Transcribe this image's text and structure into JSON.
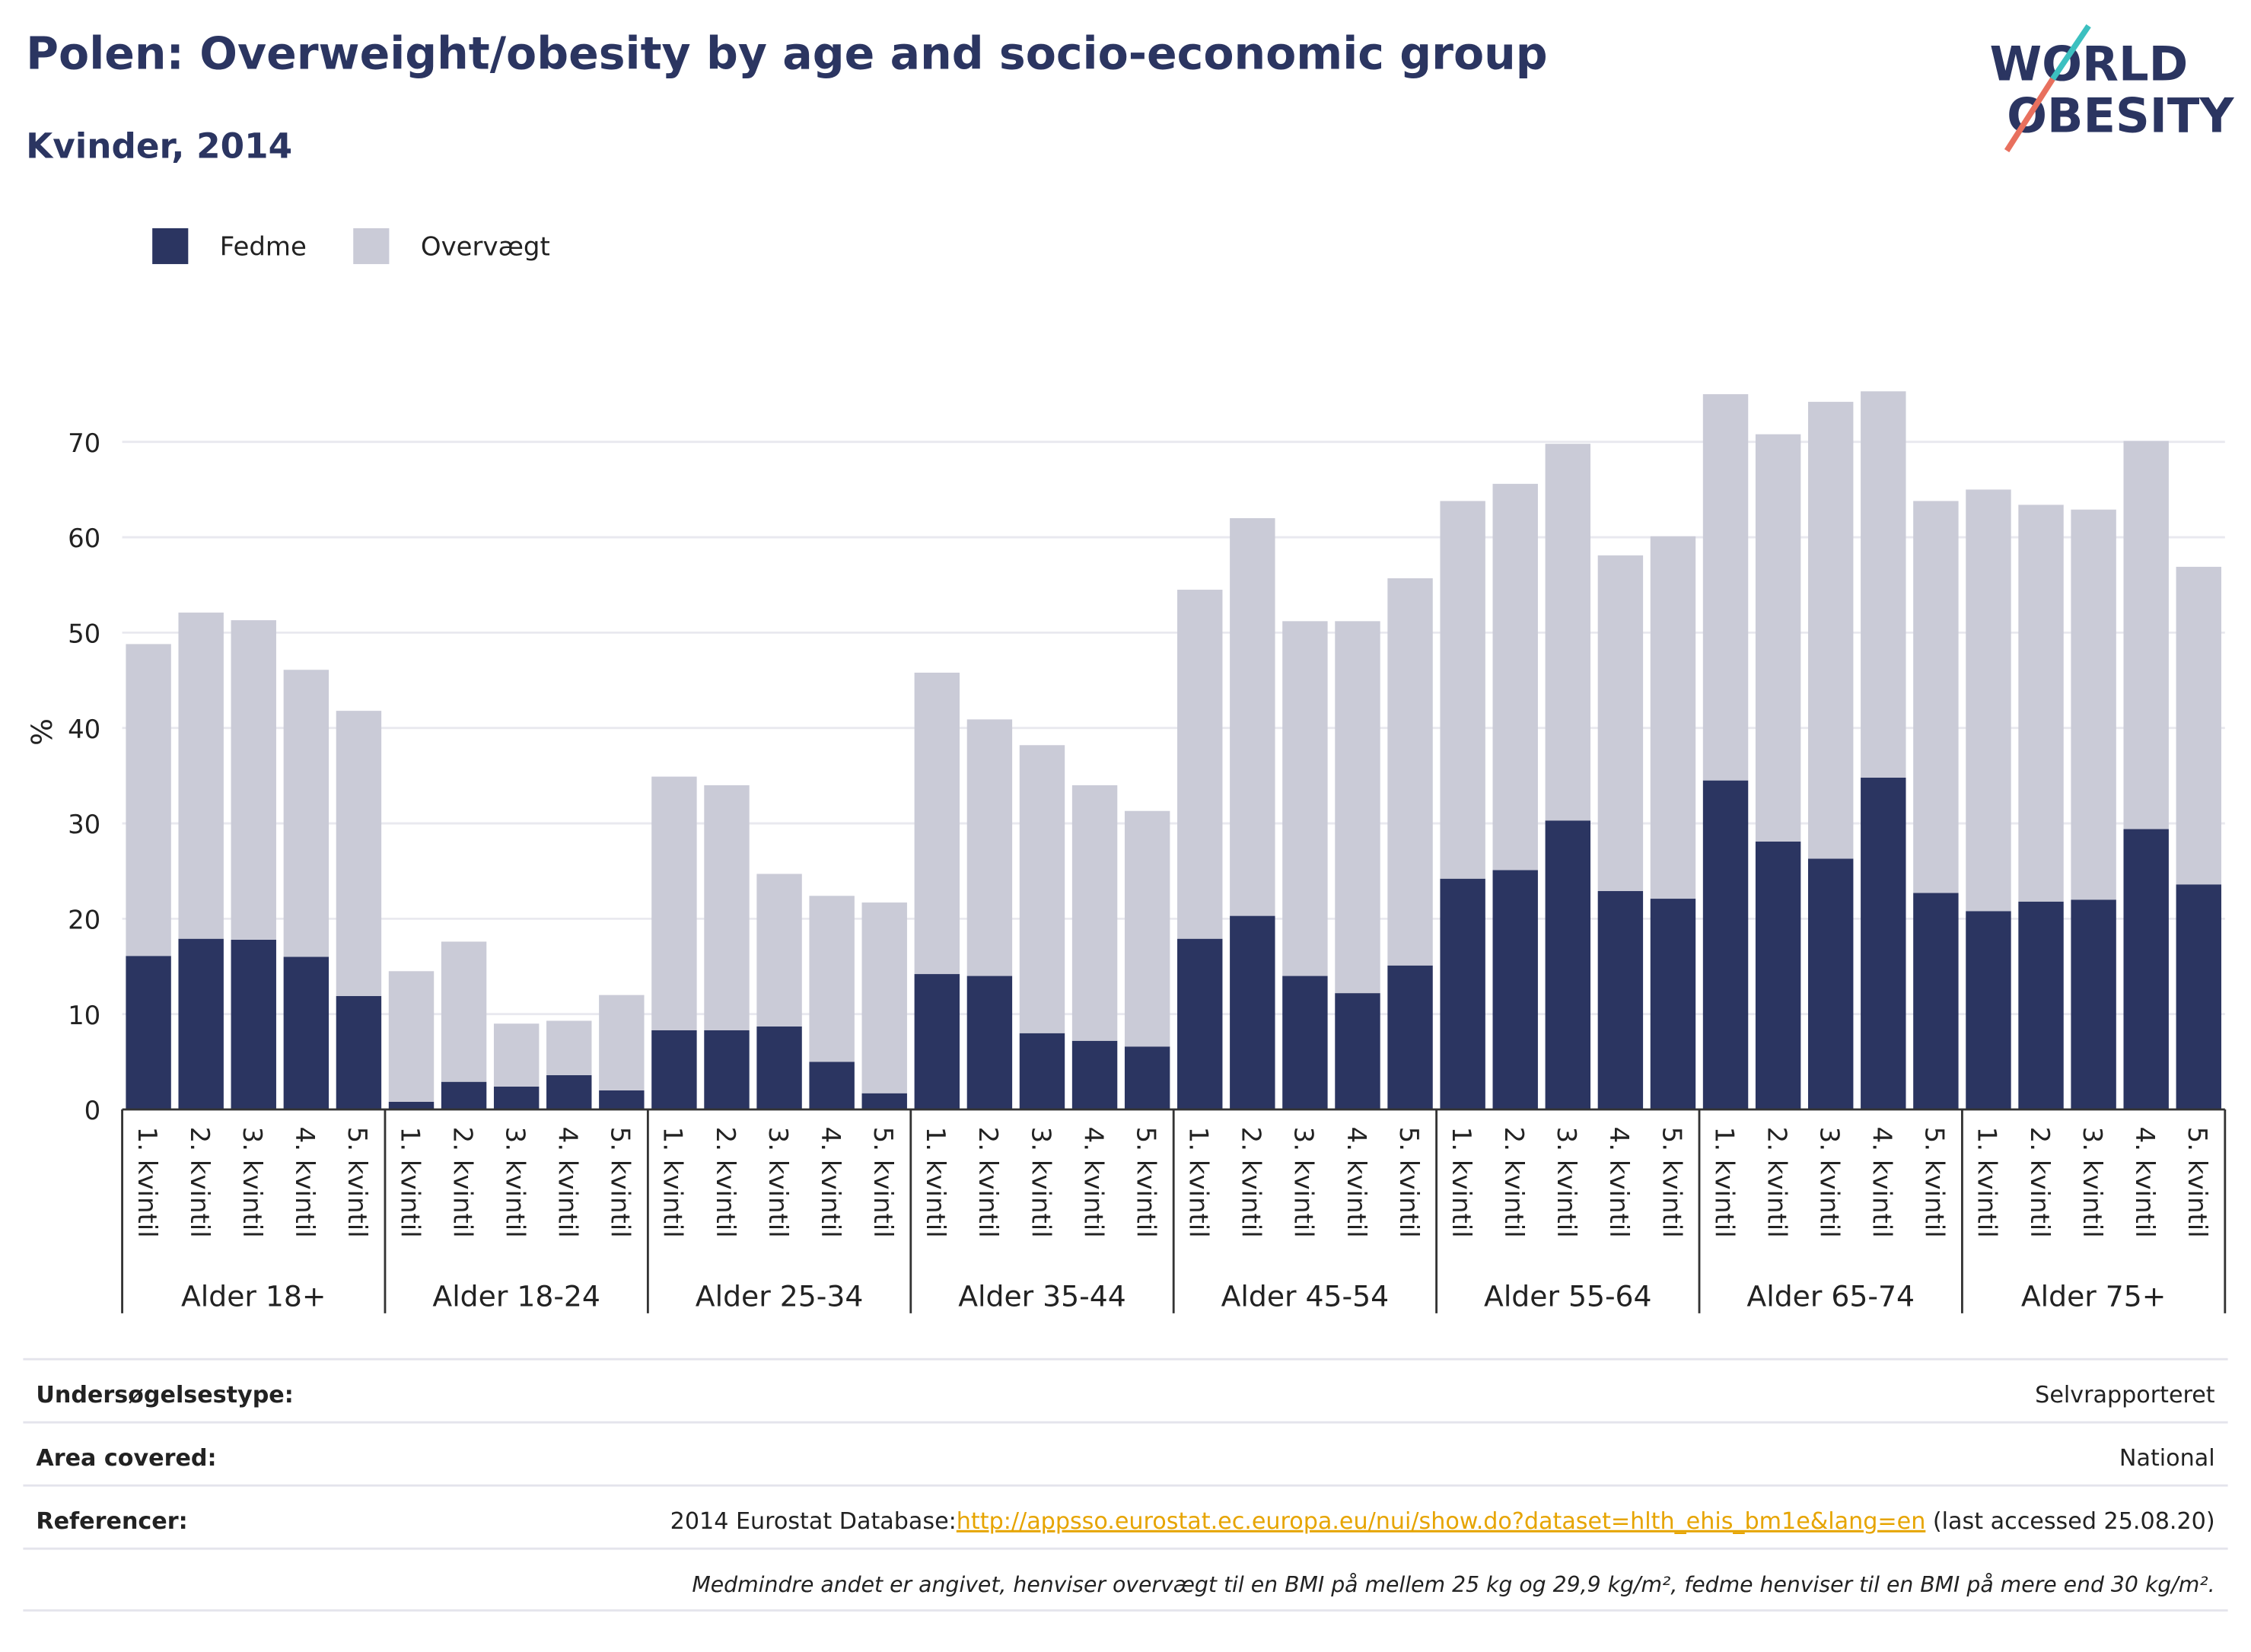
{
  "chart_data": {
    "type": "bar",
    "title": "Polen: Overweight/obesity by age and socio-economic group",
    "subtitle": "Kvinder, 2014",
    "y_label": "%",
    "categories": [
      "1. kvintil",
      "2. kvintil",
      "3. kvintil",
      "4. kvintil",
      "5. kvintil",
      "1. kvintil",
      "2. kvintil",
      "3. kvintil",
      "4. kvintil",
      "5. kvintil",
      "1. kvintil",
      "2. kvintil",
      "3. kvintil",
      "4. kvintil",
      "5. kvintil",
      "1. kvintil",
      "2. kvintil",
      "3. kvintil",
      "4. kvintil",
      "5. kvintil",
      "1. kvintil",
      "2. kvintil",
      "3. kvintil",
      "4. kvintil",
      "5. kvintil",
      "1. kvintil",
      "2. kvintil",
      "3. kvintil",
      "4. kvintil",
      "5. kvintil",
      "1. kvintil",
      "2. kvintil",
      "3. kvintil",
      "4. kvintil",
      "5. kvintil",
      "1. kvintil",
      "2. kvintil",
      "3. kvintil",
      "4. kvintil",
      "5. kvintil"
    ],
    "category_groups": [
      "Alder 18+",
      "Alder 18-24",
      "Alder 25-34",
      "Alder 35-44",
      "Alder 45-54",
      "Alder 55-64",
      "Alder 65-74",
      "Alder 75+"
    ],
    "stacked": true,
    "series": [
      {
        "name": "Fedme",
        "color": "#2b3561",
        "values": [
          16.1,
          17.9,
          17.8,
          16.0,
          11.9,
          0.8,
          2.9,
          2.4,
          3.6,
          2.0,
          8.3,
          8.3,
          8.7,
          5.0,
          1.7,
          14.2,
          14.0,
          8.0,
          7.2,
          6.6,
          17.9,
          20.3,
          14.0,
          12.2,
          15.1,
          24.2,
          25.1,
          30.3,
          22.9,
          22.1,
          34.5,
          28.1,
          26.3,
          34.8,
          22.7,
          20.8,
          21.8,
          22.0,
          29.4,
          23.6
        ]
      },
      {
        "name": "Overvægt",
        "color": "#cacbd7",
        "values": [
          32.7,
          34.2,
          33.5,
          30.1,
          29.9,
          13.7,
          14.7,
          6.6,
          5.7,
          10.0,
          26.6,
          25.7,
          16.0,
          17.4,
          20.0,
          31.6,
          26.9,
          30.2,
          26.8,
          24.7,
          36.6,
          41.7,
          37.2,
          39.0,
          40.6,
          39.6,
          40.5,
          39.5,
          35.2,
          38.0,
          40.5,
          42.7,
          47.9,
          40.5,
          41.1,
          44.2,
          41.6,
          40.9,
          40.7,
          33.3
        ]
      }
    ],
    "ylim": [
      0,
      76
    ],
    "yticks": [
      0,
      10,
      20,
      30,
      40,
      50,
      60,
      70
    ],
    "grid": true,
    "legend": "top-left"
  },
  "logo": {
    "line1": "WORLD",
    "line2": "OBESITY"
  },
  "info": {
    "rows": [
      {
        "label": "Undersøgelsestype:",
        "value": "Selvrapporteret"
      },
      {
        "label": "Area covered:",
        "value": "National"
      },
      {
        "label": "Referencer:",
        "value_prefix": "2014 Eurostat Database:",
        "link": "http://appsso.eurostat.ec.europa.eu/nui/show.do?dataset=hlth_ehis_bm1e&lang=en",
        "value_suffix": " (last accessed 25.08.20)"
      }
    ],
    "note": "Medmindre andet er angivet, henviser overvægt til en BMI på mellem 25 kg og 29,9 kg/m², fedme henviser til en BMI på mere end 30 kg/m²."
  }
}
